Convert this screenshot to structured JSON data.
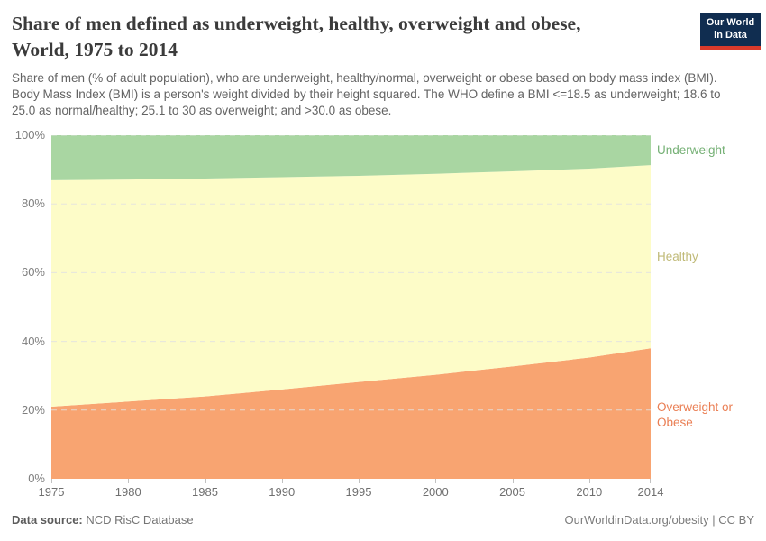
{
  "header": {
    "title_line1": "Share of men defined as underweight, healthy, overweight and obese,",
    "title_line2": "World, 1975 to 2014",
    "subtitle": "Share of men (% of adult population), who are underweight, healthy/normal, overweight or obese based on body mass index (BMI). Body Mass Index (BMI) is a person's weight divided by their height squared. The WHO define a BMI <=18.5 as underweight; 18.6 to 25.0 as normal/healthy; 25.1 to 30 as overweight; and >30.0 as obese."
  },
  "logo": {
    "line1": "Our World",
    "line2": "in Data",
    "bg_color": "#102d50",
    "bar_color": "#d93a2b"
  },
  "footer": {
    "source_label": "Data source:",
    "source_value": "NCD RisC Database",
    "right_text": "OurWorldinData.org/obesity | CC BY"
  },
  "chart_data": {
    "type": "area",
    "stacked": true,
    "title": "Share of men defined as underweight, healthy, overweight and obese, World, 1975 to 2014",
    "xlabel": "",
    "ylabel": "",
    "x": [
      1975,
      1980,
      1985,
      1990,
      1995,
      2000,
      2005,
      2010,
      2014
    ],
    "xtick_labels": [
      "1975",
      "1980",
      "1985",
      "1990",
      "1995",
      "2000",
      "2005",
      "2010",
      "2014"
    ],
    "ytick_values": [
      0,
      20,
      40,
      60,
      80,
      100
    ],
    "ytick_labels": [
      "0%",
      "20%",
      "40%",
      "60%",
      "80%",
      "100%"
    ],
    "ylim": [
      0,
      100
    ],
    "grid": "dashed horizontal lines every 20%",
    "legend_position": "right",
    "gridline_color": "#e2e2e2",
    "series": [
      {
        "name": "Overweight or Obese",
        "fill": "#f8a471",
        "label_color": "#ea7e53",
        "values": [
          21.0,
          22.5,
          24.0,
          26.0,
          28.2,
          30.3,
          32.7,
          35.3,
          38.0
        ]
      },
      {
        "name": "Healthy",
        "fill": "#fdfcc8",
        "label_color": "#c0ba78",
        "values": [
          65.9,
          64.6,
          63.4,
          61.8,
          60.0,
          58.5,
          56.8,
          55.0,
          53.3
        ]
      },
      {
        "name": "Underweight",
        "fill": "#a9d6a2",
        "label_color": "#75b075",
        "values": [
          13.1,
          12.9,
          12.6,
          12.2,
          11.8,
          11.2,
          10.5,
          9.7,
          8.7
        ]
      }
    ]
  }
}
